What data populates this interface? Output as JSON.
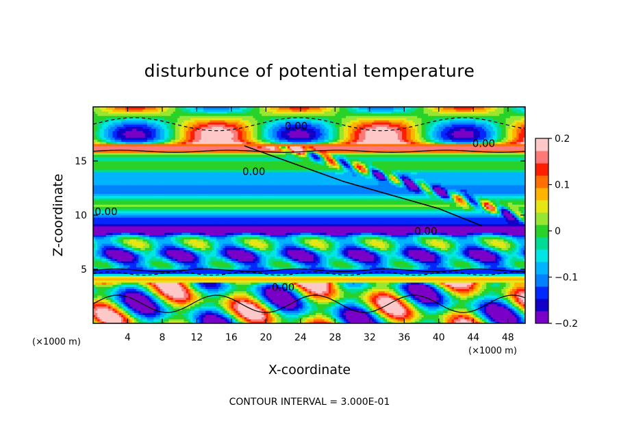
{
  "chart_data": {
    "type": "heatmap",
    "title": "disturbunce of potential temperature",
    "xlabel": "X-coordinate",
    "ylabel": "Z-coordinate",
    "x_unit": "(×1000 m)",
    "y_unit": "(×1000 m)",
    "xlim": [
      0,
      50
    ],
    "ylim": [
      0,
      20
    ],
    "x_ticks": [
      4,
      8,
      12,
      16,
      20,
      24,
      28,
      32,
      36,
      40,
      44,
      48
    ],
    "y_ticks": [
      5,
      10,
      15
    ],
    "x_tick_labels": [
      "4",
      "8",
      "12",
      "16",
      "20",
      "24",
      "28",
      "32",
      "36",
      "40",
      "44",
      "48"
    ],
    "y_tick_labels": [
      "5",
      "10",
      "15"
    ],
    "colorbar": {
      "range": [
        -0.2,
        0.2
      ],
      "ticks": [
        0.2,
        0.1,
        0,
        -0.1,
        -0.2
      ],
      "tick_labels": [
        "0.2",
        "0.1",
        "0",
        "−0.1",
        "−0.2"
      ],
      "colors": [
        "#7a00c8",
        "#1000c8",
        "#0028ff",
        "#0082ff",
        "#00b4ff",
        "#00e6e6",
        "#00dc96",
        "#28d228",
        "#96e632",
        "#e6e614",
        "#ffb400",
        "#ff6e00",
        "#ff1e00",
        "#ff7878",
        "#ffc8c8"
      ]
    },
    "contour_interval": "CONTOUR INTERVAL = 3.000E-01",
    "contour_labels": [
      {
        "x": 18.6,
        "z": 13.7,
        "text": "0.00"
      },
      {
        "x": 23.5,
        "z": 17.9,
        "text": "0.00"
      },
      {
        "x": 45.2,
        "z": 16.3,
        "text": "0.00"
      },
      {
        "x": 22.0,
        "z": 3.0,
        "text": "0.00"
      },
      {
        "x": 1.5,
        "z": 10.0,
        "text": "0.00"
      },
      {
        "x": 38.5,
        "z": 8.2,
        "text": "0.00"
      }
    ]
  }
}
